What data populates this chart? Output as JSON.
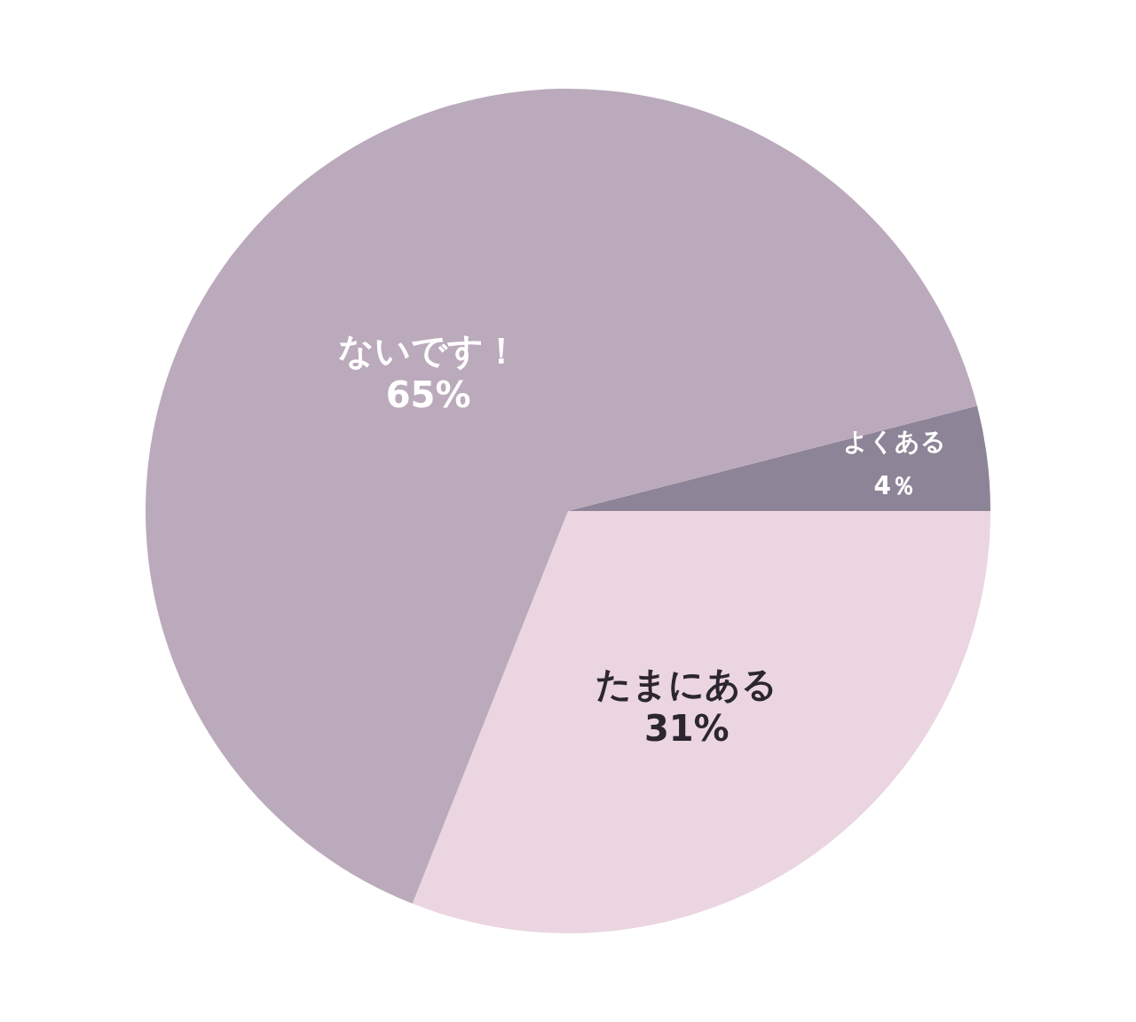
{
  "chart_data": {
    "type": "pie",
    "categories": [
      "たまにある",
      "ないです！",
      "よくある"
    ],
    "values": [
      31,
      65,
      4
    ],
    "colors": [
      "#ead5e0",
      "#bbaabc",
      "#8e8497"
    ],
    "value_labels": [
      "31%",
      "65%",
      "4％"
    ]
  }
}
